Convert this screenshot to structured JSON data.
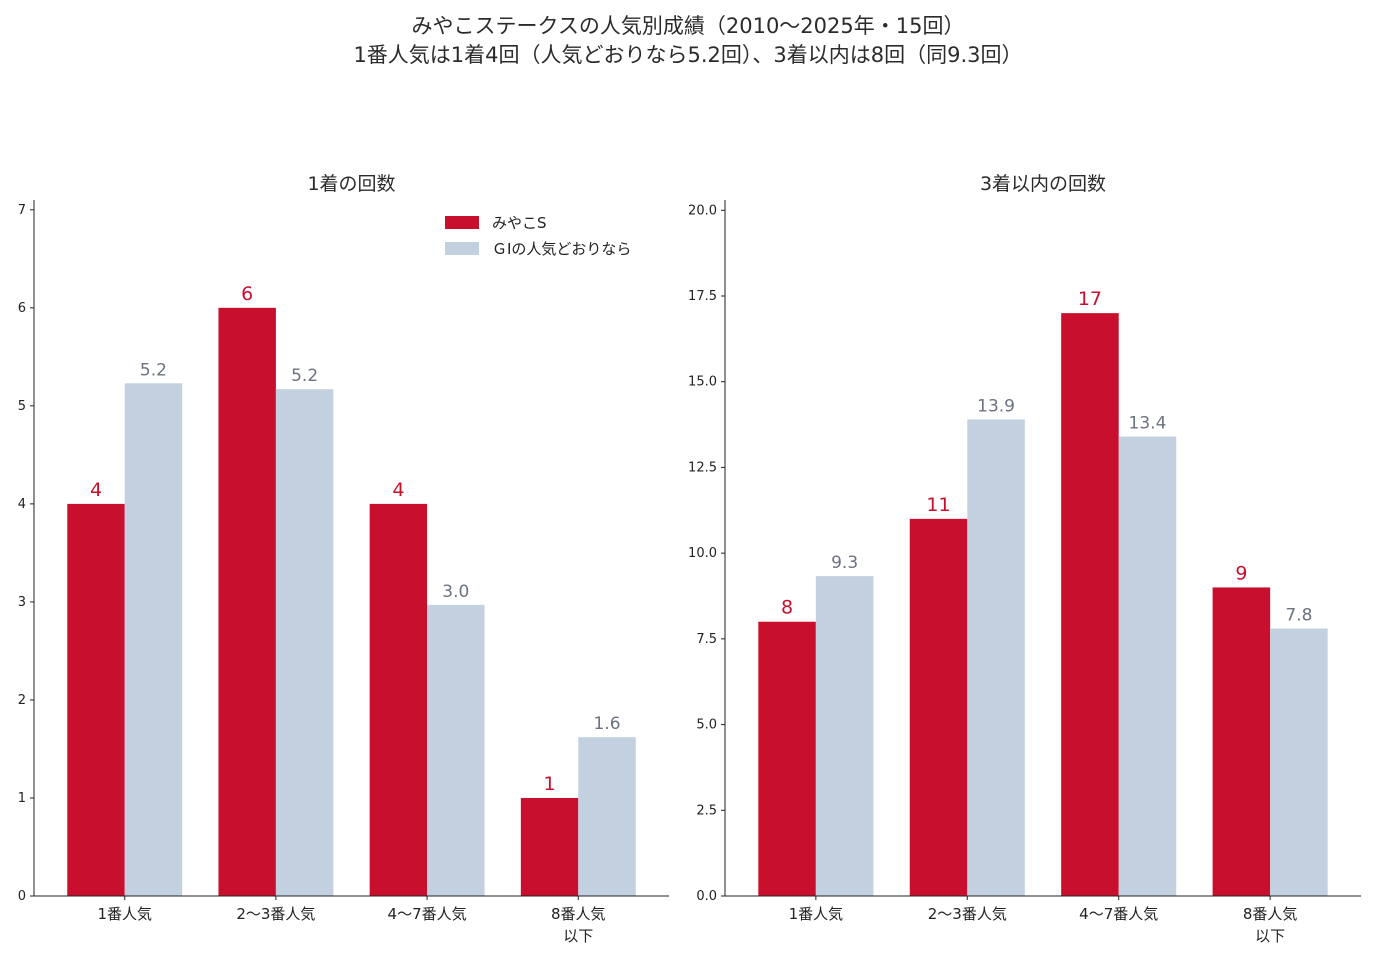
{
  "title": {
    "line1": "みやこステークスの人気別成績（2010〜2025年・15回）",
    "line2": "1番人気は1着4回（人気どおりなら5.2回）、3着以内は8回（同9.3回）"
  },
  "colors": {
    "primary": "#c8102e",
    "secondary": "#c3d0e0",
    "secondary_label": "#6b7280",
    "axis": "#222222"
  },
  "legend": {
    "placement": "top-right of left chart",
    "items": [
      "みやこS",
      "ＧⅠの人気どおりなら"
    ]
  },
  "chart_data": [
    {
      "type": "bar",
      "title": "1着の回数",
      "categories": [
        [
          "1番人気"
        ],
        [
          "2〜3番人気"
        ],
        [
          "4〜7番人気"
        ],
        [
          "8番人気",
          "以下"
        ]
      ],
      "series": [
        {
          "name": "みやこS",
          "values": [
            4,
            6,
            4,
            1
          ],
          "labels": [
            "4",
            "6",
            "4",
            "1"
          ]
        },
        {
          "name": "ＧⅠの人気どおりなら",
          "values": [
            5.23,
            5.17,
            2.97,
            1.62
          ],
          "labels": [
            "5.2",
            "5.2",
            "3.0",
            "1.6"
          ]
        }
      ],
      "ylim": [
        0,
        7.1
      ],
      "yticks": [
        "0",
        "1",
        "2",
        "3",
        "4",
        "5",
        "6",
        "7"
      ],
      "ytick_values": [
        0,
        1,
        2,
        3,
        4,
        5,
        6,
        7
      ],
      "xlabel": "",
      "ylabel": "",
      "grid": false
    },
    {
      "type": "bar",
      "title": "3着以内の回数",
      "categories": [
        [
          "1番人気"
        ],
        [
          "2〜3番人気"
        ],
        [
          "4〜7番人気"
        ],
        [
          "8番人気",
          "以下"
        ]
      ],
      "series": [
        {
          "name": "みやこS",
          "values": [
            8,
            11,
            17,
            9
          ],
          "labels": [
            "8",
            "11",
            "17",
            "9"
          ]
        },
        {
          "name": "ＧⅠの人気どおりなら",
          "values": [
            9.33,
            13.9,
            13.4,
            7.8
          ],
          "labels": [
            "9.3",
            "13.9",
            "13.4",
            "7.8"
          ]
        }
      ],
      "ylim": [
        0,
        20.3
      ],
      "yticks": [
        "0.0",
        "2.5",
        "5.0",
        "7.5",
        "10.0",
        "12.5",
        "15.0",
        "17.5",
        "20.0"
      ],
      "ytick_values": [
        0,
        2.5,
        5,
        7.5,
        10,
        12.5,
        15,
        17.5,
        20
      ],
      "xlabel": "",
      "ylabel": "",
      "grid": false
    }
  ]
}
